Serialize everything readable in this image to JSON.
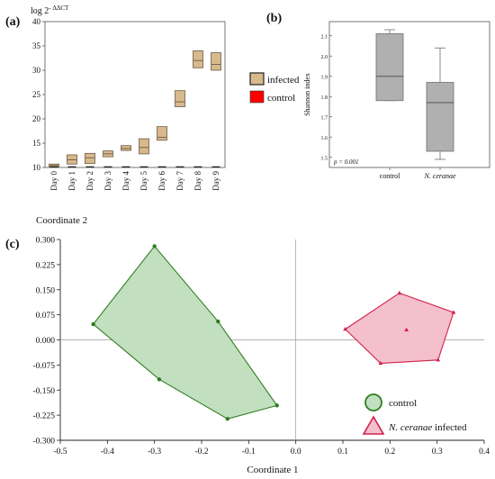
{
  "panels": {
    "a_label": "(a)",
    "b_label": "(b)",
    "c_label": "(c)"
  },
  "chart_data": [
    {
      "type": "box",
      "panel": "a",
      "ylabel_base": "log 2",
      "ylabel_exp": "- ΔΔCT",
      "ylim": [
        10,
        40
      ],
      "yticks": [
        10,
        15,
        20,
        25,
        30,
        35,
        40
      ],
      "categories": [
        "Day 0",
        "Day 1",
        "Day 2",
        "Day 3",
        "Day 4",
        "Day 5",
        "Day 6",
        "Day 7",
        "Day 8",
        "Day 9"
      ],
      "legend": [
        "infected",
        "control"
      ],
      "legend_position": "right",
      "colors": {
        "infected": "#d8b98c",
        "infected_edge": "#6b5a45",
        "control": "#ff0000"
      },
      "series": [
        {
          "name": "infected",
          "boxes": [
            {
              "q1": 10.1,
              "median": 10.4,
              "q3": 10.7
            },
            {
              "q1": 10.7,
              "median": 11.6,
              "q3": 12.6
            },
            {
              "q1": 10.8,
              "median": 12.0,
              "q3": 12.9
            },
            {
              "q1": 12.2,
              "median": 12.8,
              "q3": 13.4
            },
            {
              "q1": 13.5,
              "median": 13.9,
              "q3": 14.5
            },
            {
              "q1": 12.8,
              "median": 14.1,
              "q3": 15.9
            },
            {
              "q1": 15.6,
              "median": 16.2,
              "q3": 18.4
            },
            {
              "q1": 22.5,
              "median": 23.5,
              "q3": 25.8
            },
            {
              "q1": 30.5,
              "median": 32.0,
              "q3": 34.0
            },
            {
              "q1": 30.0,
              "median": 31.2,
              "q3": 33.6
            }
          ]
        },
        {
          "name": "control",
          "values": [
            10,
            10,
            10,
            10,
            10,
            10,
            10,
            10,
            10,
            10
          ]
        }
      ]
    },
    {
      "type": "box",
      "panel": "b",
      "ylabel": "Shannon index",
      "ylim": [
        1.45,
        2.17
      ],
      "yticks": [
        1.5,
        1.6,
        1.7,
        1.8,
        1.9,
        2.0,
        2.1
      ],
      "categories": [
        "control",
        "N. ceranae"
      ],
      "annotation": "p = 0.001",
      "colors": {
        "box": "#b0b0b0",
        "edge": "#6e6e6e"
      },
      "boxes": [
        {
          "min": 1.78,
          "q1": 1.78,
          "median": 1.9,
          "q3": 2.11,
          "max": 2.13
        },
        {
          "min": 1.49,
          "q1": 1.53,
          "median": 1.77,
          "q3": 1.87,
          "max": 2.04
        }
      ]
    },
    {
      "type": "scatter",
      "panel": "c",
      "xlabel": "Coordinate 1",
      "ylabel": "Coordinate 2",
      "xlim": [
        -0.5,
        0.4
      ],
      "ylim": [
        -0.3,
        0.3
      ],
      "xticks": [
        -0.5,
        -0.4,
        -0.3,
        -0.2,
        -0.1,
        0.0,
        0.1,
        0.2,
        0.3,
        0.4
      ],
      "xtick_labels": [
        "-0.5",
        "-0.4",
        "-0.3",
        "-0.2",
        "-0.1",
        "0.0",
        "0.1",
        "0.2",
        "0.3",
        "0.4"
      ],
      "yticks": [
        0.3,
        0.225,
        0.15,
        0.075,
        0.0,
        -0.075,
        -0.15,
        -0.225,
        -0.3
      ],
      "ytick_labels": [
        "0.300",
        "0.225",
        "0.150",
        "0.075",
        "0.000",
        "-0.075",
        "-0.150",
        "-0.225",
        "-0.300"
      ],
      "legend_position": "bottom-right",
      "series": [
        {
          "name": "control",
          "marker": "circle",
          "color": "#2e7d1e",
          "fill": "#c2dfc0",
          "points": [
            [
              -0.3,
              0.28
            ],
            [
              -0.43,
              0.047
            ],
            [
              -0.29,
              -0.118
            ],
            [
              -0.145,
              -0.236
            ],
            [
              -0.04,
              -0.196
            ],
            [
              -0.165,
              0.055
            ]
          ]
        },
        {
          "name": "N. ceranae",
          "name_suffix": "infected",
          "marker": "triangle",
          "color": "#d4204a",
          "fill": "#f4c0cc",
          "centroid": [
            0.235,
            0.03
          ],
          "points": [
            [
              0.22,
              0.14
            ],
            [
              0.335,
              0.082
            ],
            [
              0.302,
              -0.06
            ],
            [
              0.18,
              -0.07
            ],
            [
              0.105,
              0.032
            ]
          ]
        }
      ]
    }
  ]
}
